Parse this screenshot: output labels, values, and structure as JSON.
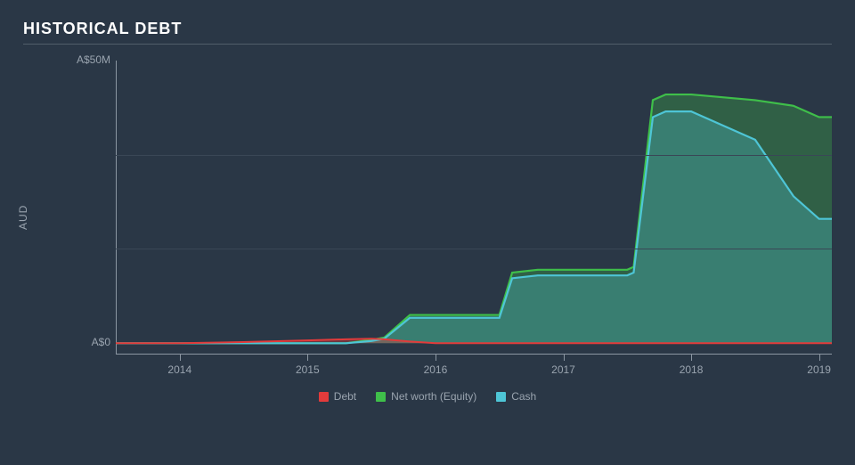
{
  "title": "HISTORICAL DEBT",
  "chart": {
    "type": "area",
    "ylabel": "AUD",
    "background_color": "#2a3746",
    "grid_color": "#3a4756",
    "axis_color": "#8b96a2",
    "text_color": "#9aa4af",
    "title_color": "#ffffff",
    "title_fontsize": 18,
    "label_fontsize": 12,
    "xlim": [
      2013.5,
      2019.1
    ],
    "ylim": [
      -2,
      50
    ],
    "yticks": [
      {
        "value": 0,
        "label": "A$0"
      },
      {
        "value": 50,
        "label": "A$50M"
      }
    ],
    "gridlines_y": [
      16.7,
      33.3
    ],
    "xticks": [
      2014,
      2015,
      2016,
      2017,
      2018,
      2019
    ],
    "x": [
      2013.5,
      2014.0,
      2014.5,
      2015.0,
      2015.3,
      2015.5,
      2015.6,
      2015.8,
      2016.0,
      2016.5,
      2016.6,
      2016.8,
      2017.0,
      2017.5,
      2017.55,
      2017.7,
      2017.8,
      2018.0,
      2018.5,
      2018.8,
      2019.0,
      2019.1
    ],
    "series": [
      {
        "name": "Net worth (Equity)",
        "color": "#3fbf4a",
        "fill": "rgba(63,191,74,0.30)",
        "line_width": 2.2,
        "y": [
          0,
          0,
          0,
          0,
          0,
          0.6,
          1,
          5,
          5,
          5,
          12.5,
          13,
          13,
          13,
          13.5,
          43,
          44,
          44,
          43,
          42,
          40,
          40
        ]
      },
      {
        "name": "Cash",
        "color": "#4ec5d6",
        "fill": "rgba(78,197,214,0.30)",
        "line_width": 2.2,
        "y": [
          0,
          0,
          0,
          0,
          0,
          0.4,
          0.8,
          4.5,
          4.5,
          4.5,
          11.5,
          12,
          12,
          12,
          12.5,
          40,
          41,
          41,
          36,
          26,
          22,
          22
        ]
      },
      {
        "name": "Debt",
        "color": "#e23b3b",
        "fill": "rgba(226,59,59,0.35)",
        "line_width": 2.0,
        "y": [
          0,
          0,
          0.2,
          0.5,
          0.7,
          0.8,
          0.7,
          0.3,
          0,
          0,
          0,
          0,
          0,
          0,
          0,
          0,
          0,
          0,
          0,
          0,
          0,
          0
        ]
      }
    ],
    "legend_order": [
      "Debt",
      "Net worth (Equity)",
      "Cash"
    ]
  }
}
